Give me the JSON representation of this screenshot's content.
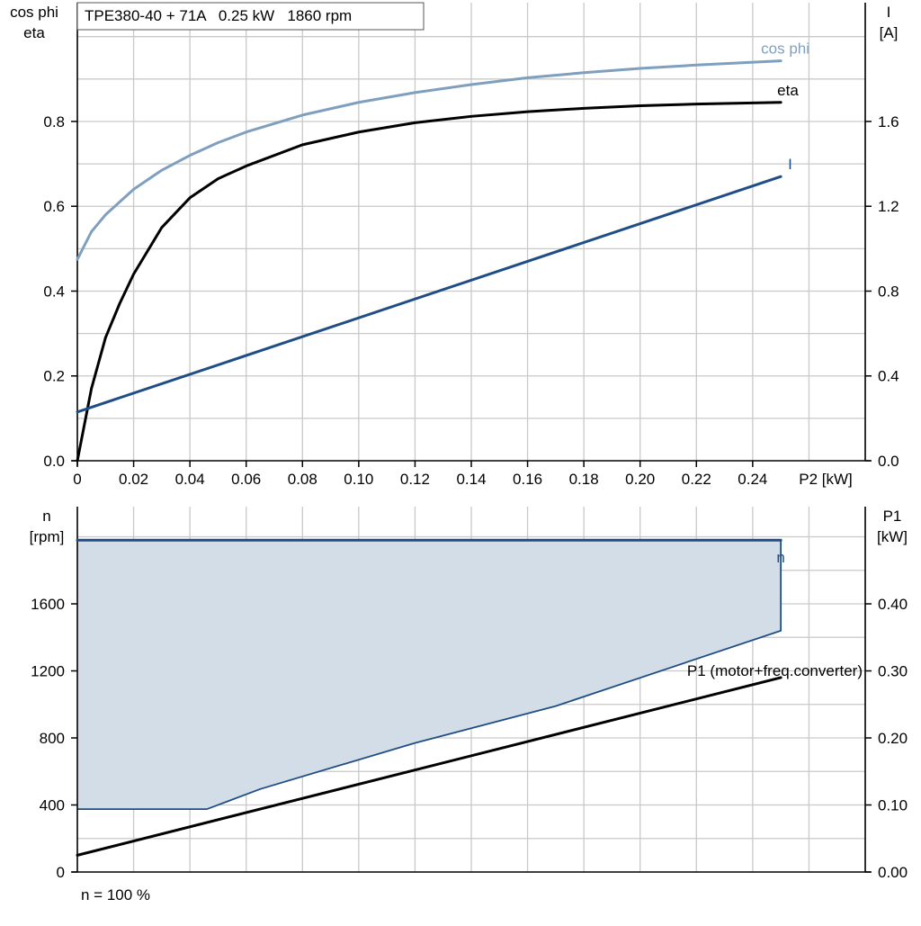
{
  "chart_data": [
    {
      "type": "line",
      "title": "TPE380-40 + 71A   0.25 kW   1860 rpm",
      "xlabel": "P2 [kW]",
      "ylabel": [
        "cos phi",
        "eta"
      ],
      "y2label": [
        "I",
        "[A]"
      ],
      "xlim": [
        0,
        0.28
      ],
      "ylim": [
        0,
        1.08
      ],
      "y2lim": [
        0,
        2.16
      ],
      "xticks": [
        0,
        0.02,
        0.04,
        0.06,
        0.08,
        0.1,
        0.12,
        0.14,
        0.16,
        0.18,
        0.2,
        0.22,
        0.24
      ],
      "xtick_labels": [
        "0",
        "0.02",
        "0.04",
        "0.06",
        "0.08",
        "0.10",
        "0.12",
        "0.14",
        "0.16",
        "0.18",
        "0.20",
        "0.22",
        "0.24"
      ],
      "yticks": [
        0,
        0.2,
        0.4,
        0.6,
        0.8
      ],
      "ytick_labels": [
        "0.0",
        "0.2",
        "0.4",
        "0.6",
        "0.8"
      ],
      "y2ticks": [
        0,
        0.4,
        0.8,
        1.2,
        1.6
      ],
      "y2tick_labels": [
        "0.0",
        "0.4",
        "0.8",
        "1.2",
        "1.6"
      ],
      "grid": true,
      "series": [
        {
          "name": "cos phi",
          "axis": "left",
          "color": "#7f9fbf",
          "x": [
            0,
            0.005,
            0.01,
            0.02,
            0.03,
            0.04,
            0.05,
            0.06,
            0.08,
            0.1,
            0.12,
            0.14,
            0.16,
            0.18,
            0.2,
            0.22,
            0.25
          ],
          "y": [
            0.475,
            0.54,
            0.58,
            0.64,
            0.685,
            0.72,
            0.75,
            0.775,
            0.815,
            0.845,
            0.868,
            0.887,
            0.903,
            0.915,
            0.925,
            0.933,
            0.943
          ]
        },
        {
          "name": "eta",
          "axis": "left",
          "color": "#000000",
          "x": [
            0,
            0.005,
            0.01,
            0.015,
            0.02,
            0.03,
            0.04,
            0.05,
            0.06,
            0.08,
            0.1,
            0.12,
            0.14,
            0.16,
            0.18,
            0.2,
            0.22,
            0.25
          ],
          "y": [
            0.0,
            0.17,
            0.29,
            0.37,
            0.44,
            0.55,
            0.62,
            0.665,
            0.695,
            0.745,
            0.775,
            0.797,
            0.812,
            0.823,
            0.831,
            0.837,
            0.841,
            0.845
          ]
        },
        {
          "name": "I",
          "axis": "right",
          "color": "#1f4e85",
          "x": [
            0,
            0.25
          ],
          "y": [
            0.23,
            1.34
          ]
        }
      ]
    },
    {
      "type": "area",
      "title": "",
      "xlim": [
        0,
        0.28
      ],
      "ylim": [
        0,
        2180
      ],
      "y2lim": [
        0,
        0.545
      ],
      "ylabel": [
        "n",
        "[rpm]"
      ],
      "y2label": [
        "P1",
        "[kW]"
      ],
      "yticks": [
        0,
        400,
        800,
        1200,
        1600
      ],
      "ytick_labels": [
        "0",
        "400",
        "800",
        "1200",
        "1600"
      ],
      "y2ticks": [
        0,
        0.1,
        0.2,
        0.3,
        0.4
      ],
      "y2tick_labels": [
        "0.00",
        "0.10",
        "0.20",
        "0.30",
        "0.40"
      ],
      "footnote": "n = 100 %",
      "grid": true,
      "operating_area": {
        "color": "#d2dde8",
        "edge_color": "#1f4e85",
        "upper": {
          "x": [
            0,
            0.25
          ],
          "y": [
            1980,
            1980
          ]
        },
        "lower": {
          "x": [
            0,
            0.046,
            0.065,
            0.12,
            0.17,
            0.25,
            0.25
          ],
          "y": [
            375,
            375,
            495,
            770,
            990,
            1440,
            1980
          ]
        }
      },
      "series": [
        {
          "name": "n",
          "axis": "left",
          "color": "#1f4e85",
          "x": [
            0,
            0.25
          ],
          "y": [
            1980,
            1980
          ]
        },
        {
          "name": "P1 (motor+freq.converter)",
          "axis": "right",
          "color": "#000000",
          "x": [
            0,
            0.25
          ],
          "y": [
            0.025,
            0.29
          ]
        }
      ]
    }
  ]
}
